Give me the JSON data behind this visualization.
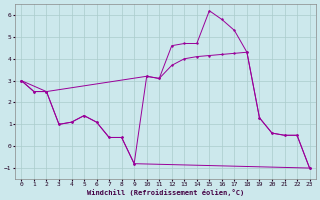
{
  "xlabel": "Windchill (Refroidissement éolien,°C)",
  "background_color": "#cce8ec",
  "grid_color": "#aacccc",
  "line_color": "#990099",
  "xlim": [
    -0.5,
    23.5
  ],
  "ylim": [
    -1.5,
    6.5
  ],
  "yticks": [
    -1,
    0,
    1,
    2,
    3,
    4,
    5,
    6
  ],
  "xticks": [
    0,
    1,
    2,
    3,
    4,
    5,
    6,
    7,
    8,
    9,
    10,
    11,
    12,
    13,
    14,
    15,
    16,
    17,
    18,
    19,
    20,
    21,
    22,
    23
  ],
  "series1": {
    "x": [
      0,
      1,
      2,
      3,
      4,
      5,
      6,
      7,
      8,
      9,
      10,
      11,
      12,
      13,
      14,
      15,
      16,
      17,
      18,
      19,
      20,
      21,
      22,
      23
    ],
    "y": [
      3.0,
      2.5,
      2.5,
      1.0,
      1.1,
      1.4,
      1.1,
      0.4,
      0.4,
      -0.8,
      3.2,
      3.1,
      4.6,
      4.7,
      4.7,
      6.2,
      5.8,
      5.3,
      4.3,
      1.3,
      0.6,
      0.5,
      0.5,
      -1.0
    ]
  },
  "series2": {
    "x": [
      0,
      2,
      10,
      11,
      12,
      13,
      14,
      15,
      16,
      17,
      18,
      19,
      20,
      21,
      22,
      23
    ],
    "y": [
      3.0,
      2.5,
      3.2,
      3.1,
      3.7,
      4.0,
      4.1,
      4.15,
      4.2,
      4.25,
      4.3,
      1.3,
      0.6,
      0.5,
      0.5,
      -1.0
    ]
  },
  "series3": {
    "x": [
      0,
      1,
      2,
      3,
      4,
      5,
      6,
      7,
      8,
      9,
      23
    ],
    "y": [
      3.0,
      2.5,
      2.5,
      1.0,
      1.1,
      1.4,
      1.1,
      0.4,
      0.4,
      -0.8,
      -1.0
    ]
  }
}
